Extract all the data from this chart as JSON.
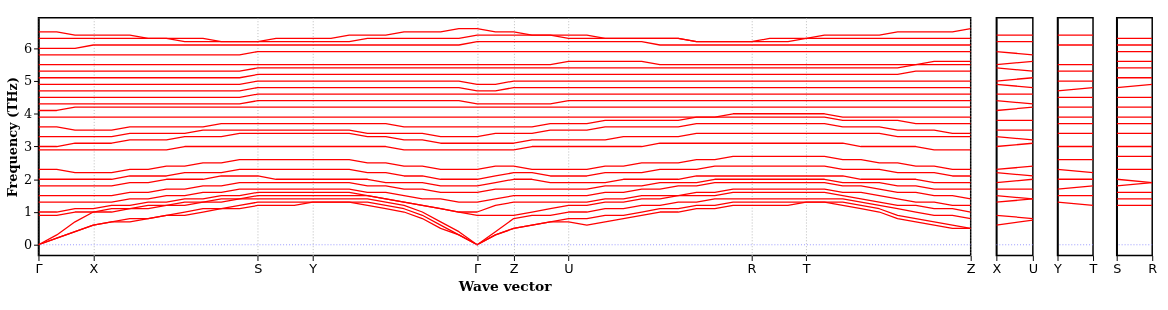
{
  "chart_data": [
    {
      "type": "line",
      "xlabel": "Wave vector",
      "ylabel": "Frequency (THz)",
      "grid": "x",
      "categories": [
        "Γ",
        null,
        null,
        "X",
        null,
        null,
        null,
        null,
        null,
        null,
        null,
        null,
        "S",
        null,
        null,
        "Y",
        null,
        null,
        null,
        null,
        null,
        null,
        null,
        null,
        "Γ",
        null,
        "Z",
        null,
        null,
        "U",
        null,
        null,
        null,
        null,
        null,
        null,
        null,
        null,
        null,
        "R",
        null,
        null,
        "T",
        null,
        null,
        null,
        null,
        null,
        null,
        null,
        null,
        "Z"
      ],
      "ylim": [
        -0.33,
        6.93
      ],
      "yticks": [
        0,
        1,
        2,
        3,
        4,
        5,
        6
      ],
      "ref_lines": [
        {
          "axis": "y",
          "value": 0,
          "color": "#8080ff",
          "line_style": "dotted"
        }
      ],
      "series": [
        {
          "color": "#ff0000",
          "values": [
            0,
            0.2,
            0.4,
            0.6,
            0.7,
            0.7,
            0.8,
            0.9,
            0.9,
            1.0,
            1.1,
            1.1,
            1.2,
            1.2,
            1.2,
            1.3,
            1.3,
            1.3,
            1.2,
            1.1,
            1.0,
            0.8,
            0.5,
            0.3,
            0,
            0.3,
            0.5,
            0.6,
            0.7,
            0.7,
            0.6,
            0.7,
            0.8,
            0.9,
            1.0,
            1.0,
            1.1,
            1.1,
            1.2,
            1.2,
            1.2,
            1.2,
            1.3,
            1.3,
            1.2,
            1.1,
            1.0,
            0.8,
            0.7,
            0.6,
            0.5,
            0.5
          ]
        },
        {
          "color": "#ff0000",
          "values": [
            0,
            0.2,
            0.4,
            0.6,
            0.7,
            0.8,
            0.8,
            0.9,
            1.0,
            1.1,
            1.1,
            1.2,
            1.3,
            1.3,
            1.3,
            1.3,
            1.3,
            1.3,
            1.3,
            1.2,
            1.1,
            0.9,
            0.6,
            0.3,
            0,
            0.3,
            0.5,
            0.6,
            0.7,
            0.8,
            0.8,
            0.9,
            0.9,
            1.0,
            1.1,
            1.1,
            1.2,
            1.2,
            1.3,
            1.3,
            1.3,
            1.3,
            1.3,
            1.3,
            1.3,
            1.2,
            1.1,
            0.9,
            0.8,
            0.7,
            0.6,
            0.5
          ]
        },
        {
          "color": "#ff0000",
          "values": [
            0,
            0.3,
            0.7,
            1.0,
            1.0,
            1.1,
            1.1,
            1.2,
            1.2,
            1.3,
            1.3,
            1.4,
            1.4,
            1.4,
            1.4,
            1.4,
            1.4,
            1.4,
            1.4,
            1.3,
            1.2,
            1.0,
            0.7,
            0.4,
            0,
            0.4,
            0.8,
            0.9,
            0.9,
            1.0,
            1.0,
            1.1,
            1.1,
            1.2,
            1.2,
            1.3,
            1.3,
            1.4,
            1.4,
            1.4,
            1.4,
            1.4,
            1.4,
            1.4,
            1.4,
            1.3,
            1.2,
            1.1,
            1.0,
            0.9,
            0.9,
            0.8
          ]
        },
        {
          "color": "#ff0000",
          "values": [
            0.9,
            0.9,
            1.0,
            1.0,
            1.1,
            1.1,
            1.2,
            1.2,
            1.3,
            1.3,
            1.4,
            1.4,
            1.5,
            1.5,
            1.5,
            1.5,
            1.5,
            1.5,
            1.5,
            1.4,
            1.3,
            1.2,
            1.1,
            1.0,
            0.9,
            0.9,
            0.9,
            1.0,
            1.1,
            1.2,
            1.2,
            1.3,
            1.3,
            1.4,
            1.4,
            1.5,
            1.5,
            1.5,
            1.6,
            1.6,
            1.6,
            1.6,
            1.6,
            1.6,
            1.5,
            1.4,
            1.3,
            1.2,
            1.2,
            1.1,
            1.1,
            1.0
          ]
        },
        {
          "color": "#ff0000",
          "values": [
            1.0,
            1.0,
            1.1,
            1.1,
            1.2,
            1.2,
            1.3,
            1.3,
            1.4,
            1.4,
            1.5,
            1.5,
            1.6,
            1.6,
            1.6,
            1.6,
            1.6,
            1.6,
            1.5,
            1.4,
            1.3,
            1.2,
            1.1,
            1.0,
            1.0,
            1.2,
            1.3,
            1.3,
            1.3,
            1.3,
            1.3,
            1.4,
            1.4,
            1.5,
            1.5,
            1.5,
            1.6,
            1.6,
            1.7,
            1.7,
            1.7,
            1.7,
            1.7,
            1.7,
            1.6,
            1.6,
            1.5,
            1.4,
            1.3,
            1.3,
            1.2,
            1.2
          ]
        },
        {
          "color": "#ff0000",
          "values": [
            1.3,
            1.3,
            1.3,
            1.3,
            1.3,
            1.4,
            1.4,
            1.5,
            1.5,
            1.6,
            1.6,
            1.7,
            1.7,
            1.7,
            1.7,
            1.7,
            1.7,
            1.7,
            1.6,
            1.6,
            1.5,
            1.4,
            1.4,
            1.3,
            1.3,
            1.4,
            1.5,
            1.5,
            1.5,
            1.5,
            1.5,
            1.6,
            1.6,
            1.7,
            1.7,
            1.8,
            1.8,
            1.9,
            1.9,
            1.9,
            1.9,
            1.9,
            1.9,
            1.9,
            1.8,
            1.8,
            1.7,
            1.6,
            1.6,
            1.5,
            1.5,
            1.4
          ]
        },
        {
          "color": "#ff0000",
          "values": [
            1.5,
            1.5,
            1.5,
            1.5,
            1.5,
            1.6,
            1.6,
            1.7,
            1.7,
            1.8,
            1.8,
            1.9,
            1.9,
            1.9,
            1.9,
            1.9,
            1.9,
            1.9,
            1.8,
            1.8,
            1.7,
            1.7,
            1.6,
            1.6,
            1.6,
            1.7,
            1.7,
            1.7,
            1.7,
            1.7,
            1.7,
            1.8,
            1.8,
            1.8,
            1.9,
            1.9,
            1.9,
            2.0,
            2.0,
            2.0,
            2.0,
            2.0,
            2.0,
            2.0,
            1.9,
            1.9,
            1.9,
            1.8,
            1.8,
            1.7,
            1.7,
            1.7
          ]
        },
        {
          "color": "#ff0000",
          "values": [
            1.8,
            1.8,
            1.8,
            1.8,
            1.8,
            1.9,
            1.9,
            2.0,
            2.0,
            2.0,
            2.1,
            2.1,
            2.1,
            2.0,
            2.0,
            2.0,
            2.0,
            2.0,
            2.0,
            1.9,
            1.9,
            1.9,
            1.8,
            1.8,
            1.8,
            1.9,
            2.0,
            2.0,
            1.9,
            1.9,
            1.9,
            1.9,
            2.0,
            2.0,
            2.0,
            2.0,
            2.1,
            2.1,
            2.1,
            2.1,
            2.1,
            2.1,
            2.1,
            2.1,
            2.1,
            2.0,
            2.0,
            2.0,
            2.0,
            1.9,
            1.9,
            1.9
          ]
        },
        {
          "color": "#ff0000",
          "values": [
            2.0,
            2.0,
            2.0,
            2.0,
            2.0,
            2.1,
            2.1,
            2.1,
            2.2,
            2.2,
            2.2,
            2.3,
            2.3,
            2.3,
            2.3,
            2.3,
            2.3,
            2.3,
            2.2,
            2.2,
            2.1,
            2.1,
            2.0,
            2.0,
            2.0,
            2.1,
            2.2,
            2.2,
            2.1,
            2.1,
            2.1,
            2.2,
            2.2,
            2.2,
            2.3,
            2.3,
            2.3,
            2.4,
            2.4,
            2.4,
            2.4,
            2.4,
            2.4,
            2.4,
            2.3,
            2.3,
            2.3,
            2.2,
            2.2,
            2.2,
            2.1,
            2.1
          ]
        },
        {
          "color": "#ff0000",
          "values": [
            2.3,
            2.3,
            2.2,
            2.2,
            2.2,
            2.3,
            2.3,
            2.4,
            2.4,
            2.5,
            2.5,
            2.6,
            2.6,
            2.6,
            2.6,
            2.6,
            2.6,
            2.6,
            2.5,
            2.5,
            2.4,
            2.4,
            2.3,
            2.3,
            2.3,
            2.4,
            2.4,
            2.3,
            2.3,
            2.3,
            2.3,
            2.4,
            2.4,
            2.5,
            2.5,
            2.5,
            2.6,
            2.6,
            2.7,
            2.7,
            2.7,
            2.7,
            2.7,
            2.7,
            2.6,
            2.6,
            2.5,
            2.5,
            2.4,
            2.4,
            2.3,
            2.3
          ]
        },
        {
          "color": "#ff0000",
          "values": [
            2.9,
            2.9,
            2.9,
            2.9,
            2.9,
            2.9,
            2.9,
            2.9,
            3.0,
            3.0,
            3.0,
            3.0,
            3.0,
            3.0,
            3.0,
            3.0,
            3.0,
            3.0,
            3.0,
            3.0,
            2.9,
            2.9,
            2.9,
            2.9,
            2.9,
            2.9,
            2.9,
            3.0,
            3.0,
            3.0,
            3.0,
            3.0,
            3.0,
            3.0,
            3.1,
            3.1,
            3.1,
            3.1,
            3.1,
            3.1,
            3.1,
            3.1,
            3.1,
            3.1,
            3.1,
            3.0,
            3.0,
            3.0,
            3.0,
            2.9,
            2.9,
            2.9
          ]
        },
        {
          "color": "#ff0000",
          "values": [
            3.0,
            3.0,
            3.1,
            3.1,
            3.1,
            3.2,
            3.2,
            3.2,
            3.3,
            3.3,
            3.3,
            3.4,
            3.4,
            3.4,
            3.4,
            3.4,
            3.4,
            3.4,
            3.3,
            3.3,
            3.2,
            3.2,
            3.1,
            3.1,
            3.1,
            3.1,
            3.1,
            3.2,
            3.2,
            3.2,
            3.2,
            3.2,
            3.3,
            3.3,
            3.3,
            3.3,
            3.4,
            3.4,
            3.4,
            3.4,
            3.4,
            3.4,
            3.4,
            3.4,
            3.4,
            3.4,
            3.4,
            3.3,
            3.3,
            3.3,
            3.3,
            3.3
          ]
        },
        {
          "color": "#ff0000",
          "values": [
            3.3,
            3.3,
            3.3,
            3.3,
            3.3,
            3.4,
            3.4,
            3.4,
            3.4,
            3.5,
            3.5,
            3.5,
            3.5,
            3.5,
            3.5,
            3.5,
            3.5,
            3.5,
            3.4,
            3.4,
            3.4,
            3.4,
            3.3,
            3.3,
            3.3,
            3.4,
            3.4,
            3.4,
            3.5,
            3.5,
            3.5,
            3.6,
            3.6,
            3.6,
            3.6,
            3.6,
            3.7,
            3.7,
            3.7,
            3.7,
            3.7,
            3.7,
            3.7,
            3.7,
            3.6,
            3.6,
            3.6,
            3.5,
            3.5,
            3.5,
            3.4,
            3.4
          ]
        },
        {
          "color": "#ff0000",
          "values": [
            3.6,
            3.6,
            3.5,
            3.5,
            3.5,
            3.6,
            3.6,
            3.6,
            3.6,
            3.6,
            3.7,
            3.7,
            3.7,
            3.7,
            3.7,
            3.7,
            3.7,
            3.7,
            3.7,
            3.7,
            3.6,
            3.6,
            3.6,
            3.6,
            3.6,
            3.6,
            3.6,
            3.6,
            3.7,
            3.7,
            3.7,
            3.8,
            3.8,
            3.8,
            3.8,
            3.8,
            3.9,
            3.9,
            3.9,
            3.9,
            3.9,
            3.9,
            3.9,
            3.9,
            3.8,
            3.8,
            3.8,
            3.8,
            3.7,
            3.7,
            3.7,
            3.7
          ]
        },
        {
          "color": "#ff0000",
          "values": [
            3.9,
            3.9,
            3.9,
            3.9,
            3.9,
            3.9,
            3.9,
            3.9,
            3.9,
            3.9,
            3.9,
            3.9,
            3.9,
            3.9,
            3.9,
            3.9,
            3.9,
            3.9,
            3.9,
            3.9,
            3.9,
            3.9,
            3.9,
            3.9,
            3.9,
            3.9,
            3.9,
            3.9,
            3.9,
            3.9,
            3.9,
            3.9,
            3.9,
            3.9,
            3.9,
            3.9,
            3.9,
            3.9,
            4.0,
            4.0,
            4.0,
            4.0,
            4.0,
            4.0,
            3.9,
            3.9,
            3.9,
            3.9,
            3.9,
            3.9,
            3.9,
            3.9
          ]
        },
        {
          "color": "#ff0000",
          "values": [
            4.1,
            4.1,
            4.2,
            4.2,
            4.2,
            4.2,
            4.2,
            4.2,
            4.2,
            4.2,
            4.2,
            4.2,
            4.2,
            4.2,
            4.2,
            4.2,
            4.2,
            4.2,
            4.2,
            4.2,
            4.2,
            4.2,
            4.2,
            4.2,
            4.2,
            4.2,
            4.2,
            4.2,
            4.2,
            4.2,
            4.2,
            4.2,
            4.2,
            4.2,
            4.2,
            4.2,
            4.2,
            4.2,
            4.2,
            4.2,
            4.2,
            4.2,
            4.2,
            4.2,
            4.2,
            4.2,
            4.2,
            4.2,
            4.2,
            4.2,
            4.2,
            4.2
          ]
        },
        {
          "color": "#ff0000",
          "values": [
            4.3,
            4.3,
            4.3,
            4.3,
            4.3,
            4.3,
            4.3,
            4.3,
            4.3,
            4.3,
            4.3,
            4.3,
            4.4,
            4.4,
            4.4,
            4.4,
            4.4,
            4.4,
            4.4,
            4.4,
            4.4,
            4.4,
            4.4,
            4.4,
            4.3,
            4.3,
            4.3,
            4.3,
            4.3,
            4.4,
            4.4,
            4.4,
            4.4,
            4.4,
            4.4,
            4.4,
            4.4,
            4.4,
            4.4,
            4.4,
            4.4,
            4.4,
            4.4,
            4.4,
            4.4,
            4.4,
            4.4,
            4.4,
            4.4,
            4.4,
            4.4,
            4.4
          ]
        },
        {
          "color": "#ff0000",
          "values": [
            4.5,
            4.5,
            4.5,
            4.5,
            4.5,
            4.5,
            4.5,
            4.5,
            4.5,
            4.5,
            4.5,
            4.5,
            4.6,
            4.6,
            4.6,
            4.6,
            4.6,
            4.6,
            4.6,
            4.6,
            4.6,
            4.6,
            4.6,
            4.6,
            4.6,
            4.6,
            4.6,
            4.6,
            4.6,
            4.6,
            4.6,
            4.6,
            4.6,
            4.6,
            4.6,
            4.6,
            4.6,
            4.6,
            4.6,
            4.6,
            4.6,
            4.6,
            4.6,
            4.6,
            4.6,
            4.6,
            4.6,
            4.6,
            4.6,
            4.6,
            4.6,
            4.6
          ]
        },
        {
          "color": "#ff0000",
          "values": [
            4.7,
            4.7,
            4.7,
            4.7,
            4.7,
            4.7,
            4.7,
            4.7,
            4.7,
            4.7,
            4.7,
            4.7,
            4.8,
            4.8,
            4.8,
            4.8,
            4.8,
            4.8,
            4.8,
            4.8,
            4.8,
            4.8,
            4.8,
            4.8,
            4.7,
            4.7,
            4.8,
            4.8,
            4.8,
            4.8,
            4.8,
            4.8,
            4.8,
            4.8,
            4.8,
            4.8,
            4.8,
            4.8,
            4.8,
            4.8,
            4.8,
            4.8,
            4.8,
            4.8,
            4.8,
            4.8,
            4.8,
            4.8,
            4.8,
            4.8,
            4.8,
            4.8
          ]
        },
        {
          "color": "#ff0000",
          "values": [
            4.9,
            4.9,
            4.9,
            4.9,
            4.9,
            4.9,
            4.9,
            4.9,
            4.9,
            4.9,
            4.9,
            4.9,
            5.0,
            5.0,
            5.0,
            5.0,
            5.0,
            5.0,
            5.0,
            5.0,
            5.0,
            5.0,
            5.0,
            5.0,
            4.9,
            4.9,
            5.0,
            5.0,
            5.0,
            5.0,
            5.0,
            5.0,
            5.0,
            5.0,
            5.0,
            5.0,
            5.0,
            5.0,
            5.0,
            5.0,
            5.0,
            5.0,
            5.0,
            5.0,
            5.0,
            5.0,
            5.0,
            5.0,
            5.0,
            5.0,
            5.0,
            5.0
          ]
        },
        {
          "color": "#ff0000",
          "values": [
            5.1,
            5.1,
            5.1,
            5.1,
            5.1,
            5.1,
            5.1,
            5.1,
            5.1,
            5.1,
            5.1,
            5.1,
            5.2,
            5.2,
            5.2,
            5.2,
            5.2,
            5.2,
            5.2,
            5.2,
            5.2,
            5.2,
            5.2,
            5.2,
            5.2,
            5.2,
            5.2,
            5.2,
            5.2,
            5.2,
            5.2,
            5.2,
            5.2,
            5.2,
            5.2,
            5.2,
            5.2,
            5.2,
            5.2,
            5.2,
            5.2,
            5.2,
            5.2,
            5.2,
            5.2,
            5.2,
            5.2,
            5.2,
            5.3,
            5.3,
            5.3,
            5.3
          ]
        },
        {
          "color": "#ff0000",
          "values": [
            5.3,
            5.3,
            5.3,
            5.3,
            5.3,
            5.3,
            5.3,
            5.3,
            5.3,
            5.3,
            5.3,
            5.3,
            5.4,
            5.4,
            5.4,
            5.4,
            5.4,
            5.4,
            5.4,
            5.4,
            5.4,
            5.4,
            5.4,
            5.4,
            5.4,
            5.4,
            5.4,
            5.4,
            5.4,
            5.4,
            5.4,
            5.4,
            5.4,
            5.4,
            5.4,
            5.4,
            5.4,
            5.4,
            5.4,
            5.4,
            5.4,
            5.4,
            5.4,
            5.4,
            5.4,
            5.4,
            5.4,
            5.4,
            5.5,
            5.5,
            5.5,
            5.5
          ]
        },
        {
          "color": "#ff0000",
          "values": [
            5.5,
            5.5,
            5.5,
            5.5,
            5.5,
            5.5,
            5.5,
            5.5,
            5.5,
            5.5,
            5.5,
            5.5,
            5.5,
            5.5,
            5.5,
            5.5,
            5.5,
            5.5,
            5.5,
            5.5,
            5.5,
            5.5,
            5.5,
            5.5,
            5.5,
            5.5,
            5.5,
            5.5,
            5.5,
            5.6,
            5.6,
            5.6,
            5.6,
            5.6,
            5.5,
            5.5,
            5.5,
            5.5,
            5.5,
            5.5,
            5.5,
            5.5,
            5.5,
            5.5,
            5.5,
            5.5,
            5.5,
            5.5,
            5.5,
            5.6,
            5.6,
            5.6
          ]
        },
        {
          "color": "#ff0000",
          "values": [
            5.8,
            5.8,
            5.8,
            5.8,
            5.8,
            5.8,
            5.8,
            5.8,
            5.8,
            5.8,
            5.8,
            5.8,
            5.9,
            5.9,
            5.9,
            5.9,
            5.9,
            5.9,
            5.9,
            5.9,
            5.9,
            5.9,
            5.9,
            5.9,
            5.9,
            5.9,
            5.9,
            5.9,
            5.9,
            5.9,
            5.9,
            5.9,
            5.9,
            5.9,
            5.9,
            5.9,
            5.9,
            5.9,
            5.9,
            5.9,
            5.9,
            5.9,
            5.9,
            5.9,
            5.9,
            5.9,
            5.9,
            5.9,
            5.9,
            5.9,
            5.9,
            5.9
          ]
        },
        {
          "color": "#ff0000",
          "values": [
            6.0,
            6.0,
            6.0,
            6.1,
            6.1,
            6.1,
            6.1,
            6.1,
            6.1,
            6.1,
            6.1,
            6.1,
            6.1,
            6.1,
            6.1,
            6.1,
            6.1,
            6.1,
            6.1,
            6.1,
            6.1,
            6.1,
            6.1,
            6.1,
            6.2,
            6.2,
            6.2,
            6.2,
            6.2,
            6.2,
            6.2,
            6.2,
            6.2,
            6.2,
            6.1,
            6.1,
            6.1,
            6.1,
            6.1,
            6.1,
            6.1,
            6.1,
            6.1,
            6.1,
            6.1,
            6.1,
            6.1,
            6.1,
            6.1,
            6.1,
            6.1,
            6.1
          ]
        },
        {
          "color": "#ff0000",
          "values": [
            6.3,
            6.3,
            6.3,
            6.3,
            6.3,
            6.3,
            6.3,
            6.3,
            6.2,
            6.2,
            6.2,
            6.2,
            6.2,
            6.2,
            6.2,
            6.2,
            6.2,
            6.2,
            6.3,
            6.3,
            6.3,
            6.3,
            6.3,
            6.3,
            6.4,
            6.4,
            6.4,
            6.4,
            6.4,
            6.3,
            6.3,
            6.3,
            6.3,
            6.3,
            6.3,
            6.3,
            6.2,
            6.2,
            6.2,
            6.2,
            6.2,
            6.2,
            6.3,
            6.3,
            6.3,
            6.3,
            6.3,
            6.3,
            6.3,
            6.3,
            6.3,
            6.3
          ]
        },
        {
          "color": "#ff0000",
          "values": [
            6.5,
            6.5,
            6.4,
            6.4,
            6.4,
            6.4,
            6.3,
            6.3,
            6.3,
            6.3,
            6.2,
            6.2,
            6.2,
            6.3,
            6.3,
            6.3,
            6.3,
            6.4,
            6.4,
            6.4,
            6.5,
            6.5,
            6.5,
            6.6,
            6.6,
            6.5,
            6.5,
            6.4,
            6.4,
            6.4,
            6.4,
            6.3,
            6.3,
            6.3,
            6.3,
            6.3,
            6.2,
            6.2,
            6.2,
            6.2,
            6.3,
            6.3,
            6.3,
            6.4,
            6.4,
            6.4,
            6.4,
            6.5,
            6.5,
            6.5,
            6.5,
            6.6
          ]
        }
      ]
    },
    {
      "type": "line",
      "categories": [
        "X",
        "U"
      ],
      "ylim": [
        -0.33,
        6.93
      ],
      "tick_labels": "x",
      "ref_lines": [
        {
          "axis": "y",
          "value": 0,
          "color": "#8080ff",
          "line_style": "dotted"
        }
      ],
      "series": [
        {
          "color": "#ff0000",
          "values": [
            0.6,
            0.75
          ]
        },
        {
          "color": "#ff0000",
          "values": [
            0.9,
            0.8
          ]
        },
        {
          "color": "#ff0000",
          "values": [
            1.3,
            1.4
          ]
        },
        {
          "color": "#ff0000",
          "values": [
            1.5,
            1.4
          ]
        },
        {
          "color": "#ff0000",
          "values": [
            1.7,
            1.7
          ]
        },
        {
          "color": "#ff0000",
          "values": [
            1.9,
            2.0
          ]
        },
        {
          "color": "#ff0000",
          "values": [
            2.2,
            2.1
          ]
        },
        {
          "color": "#ff0000",
          "values": [
            2.3,
            2.4
          ]
        },
        {
          "color": "#ff0000",
          "values": [
            3.0,
            3.1
          ]
        },
        {
          "color": "#ff0000",
          "values": [
            3.3,
            3.2
          ]
        },
        {
          "color": "#ff0000",
          "values": [
            3.5,
            3.5
          ]
        },
        {
          "color": "#ff0000",
          "values": [
            3.8,
            3.8
          ]
        },
        {
          "color": "#ff0000",
          "values": [
            4.1,
            4.2
          ]
        },
        {
          "color": "#ff0000",
          "values": [
            4.4,
            4.3
          ]
        },
        {
          "color": "#ff0000",
          "values": [
            4.6,
            4.6
          ]
        },
        {
          "color": "#ff0000",
          "values": [
            4.9,
            4.8
          ]
        },
        {
          "color": "#ff0000",
          "values": [
            5.0,
            5.1
          ]
        },
        {
          "color": "#ff0000",
          "values": [
            5.4,
            5.3
          ]
        },
        {
          "color": "#ff0000",
          "values": [
            5.5,
            5.6
          ]
        },
        {
          "color": "#ff0000",
          "values": [
            5.9,
            5.8
          ]
        },
        {
          "color": "#ff0000",
          "values": [
            6.2,
            6.2
          ]
        },
        {
          "color": "#ff0000",
          "values": [
            6.4,
            6.4
          ]
        }
      ]
    },
    {
      "type": "line",
      "categories": [
        "Y",
        "T"
      ],
      "ylim": [
        -0.33,
        6.93
      ],
      "tick_labels": "x",
      "ref_lines": [
        {
          "axis": "y",
          "value": 0,
          "color": "#8080ff",
          "line_style": "dotted"
        }
      ],
      "series": [
        {
          "color": "#ff0000",
          "values": [
            1.3,
            1.2
          ]
        },
        {
          "color": "#ff0000",
          "values": [
            1.5,
            1.5
          ]
        },
        {
          "color": "#ff0000",
          "values": [
            1.7,
            1.8
          ]
        },
        {
          "color": "#ff0000",
          "values": [
            2.0,
            2.0
          ]
        },
        {
          "color": "#ff0000",
          "values": [
            2.3,
            2.2
          ]
        },
        {
          "color": "#ff0000",
          "values": [
            2.6,
            2.6
          ]
        },
        {
          "color": "#ff0000",
          "values": [
            3.0,
            3.0
          ]
        },
        {
          "color": "#ff0000",
          "values": [
            3.4,
            3.4
          ]
        },
        {
          "color": "#ff0000",
          "values": [
            3.7,
            3.7
          ]
        },
        {
          "color": "#ff0000",
          "values": [
            3.9,
            3.9
          ]
        },
        {
          "color": "#ff0000",
          "values": [
            4.2,
            4.2
          ]
        },
        {
          "color": "#ff0000",
          "values": [
            4.5,
            4.5
          ]
        },
        {
          "color": "#ff0000",
          "values": [
            4.7,
            4.8
          ]
        },
        {
          "color": "#ff0000",
          "values": [
            5.0,
            5.0
          ]
        },
        {
          "color": "#ff0000",
          "values": [
            5.3,
            5.3
          ]
        },
        {
          "color": "#ff0000",
          "values": [
            5.5,
            5.5
          ]
        },
        {
          "color": "#ff0000",
          "values": [
            6.1,
            6.1
          ]
        },
        {
          "color": "#ff0000",
          "values": [
            6.4,
            6.4
          ]
        }
      ]
    },
    {
      "type": "line",
      "categories": [
        "S",
        "R"
      ],
      "ylim": [
        -0.33,
        6.93
      ],
      "tick_labels": "x",
      "ref_lines": [
        {
          "axis": "y",
          "value": 0,
          "color": "#8080ff",
          "line_style": "dotted"
        }
      ],
      "series": [
        {
          "color": "#ff0000",
          "values": [
            1.2,
            1.2
          ]
        },
        {
          "color": "#ff0000",
          "values": [
            1.4,
            1.4
          ]
        },
        {
          "color": "#ff0000",
          "values": [
            1.6,
            1.6
          ]
        },
        {
          "color": "#ff0000",
          "values": [
            1.8,
            1.9
          ]
        },
        {
          "color": "#ff0000",
          "values": [
            2.0,
            1.9
          ]
        },
        {
          "color": "#ff0000",
          "values": [
            2.3,
            2.3
          ]
        },
        {
          "color": "#ff0000",
          "values": [
            2.7,
            2.7
          ]
        },
        {
          "color": "#ff0000",
          "values": [
            3.0,
            3.0
          ]
        },
        {
          "color": "#ff0000",
          "values": [
            3.4,
            3.4
          ]
        },
        {
          "color": "#ff0000",
          "values": [
            3.7,
            3.7
          ]
        },
        {
          "color": "#ff0000",
          "values": [
            3.9,
            3.9
          ]
        },
        {
          "color": "#ff0000",
          "values": [
            4.2,
            4.2
          ]
        },
        {
          "color": "#ff0000",
          "values": [
            4.5,
            4.5
          ]
        },
        {
          "color": "#ff0000",
          "values": [
            4.8,
            4.9
          ]
        },
        {
          "color": "#ff0000",
          "values": [
            5.1,
            5.1
          ]
        },
        {
          "color": "#ff0000",
          "values": [
            5.4,
            5.4
          ]
        },
        {
          "color": "#ff0000",
          "values": [
            5.6,
            5.6
          ]
        },
        {
          "color": "#ff0000",
          "values": [
            5.9,
            5.9
          ]
        },
        {
          "color": "#ff0000",
          "values": [
            6.1,
            6.1
          ]
        },
        {
          "color": "#ff0000",
          "values": [
            6.3,
            6.3
          ]
        }
      ]
    }
  ]
}
